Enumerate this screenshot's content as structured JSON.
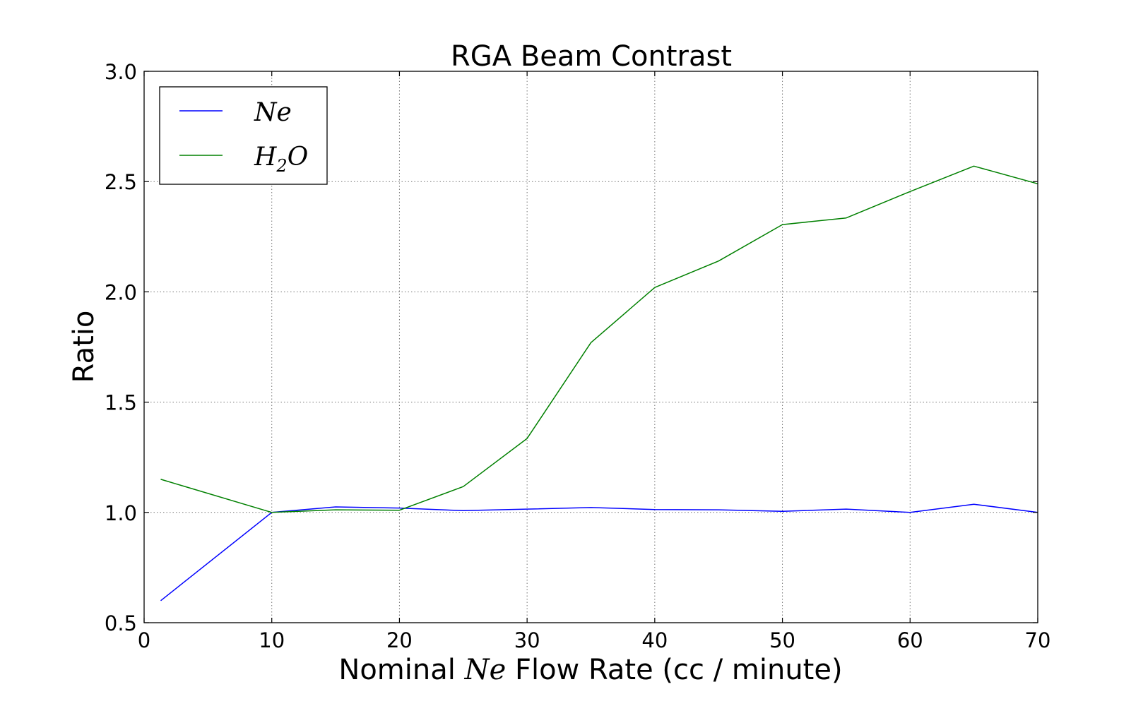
{
  "chart_data": {
    "type": "line",
    "title": "RGA Beam Contrast",
    "xlabel": {
      "pre": "Nominal ",
      "math": "Ne",
      "post": " Flow Rate (cc / minute)"
    },
    "ylabel": "Ratio",
    "xlim": [
      0,
      70
    ],
    "ylim": [
      0.5,
      3.0
    ],
    "xticks": [
      0,
      10,
      20,
      30,
      40,
      50,
      60,
      70
    ],
    "xtick_labels": [
      "0",
      "10",
      "20",
      "30",
      "40",
      "50",
      "60",
      "70"
    ],
    "yticks": [
      0.5,
      1.0,
      1.5,
      2.0,
      2.5,
      3.0
    ],
    "ytick_labels": [
      "0.5",
      "1.0",
      "1.5",
      "2.0",
      "2.5",
      "3.0"
    ],
    "grid": true,
    "legend_position": "top-left",
    "series": [
      {
        "name": "Ne",
        "label_base": "Ne",
        "label_sub": "",
        "label_tail": "",
        "color": "#0000ff",
        "x": [
          1.3,
          10,
          15,
          20,
          25,
          30,
          35,
          40,
          45,
          50,
          55,
          60,
          65,
          70
        ],
        "y": [
          0.6,
          1.0,
          1.025,
          1.02,
          1.008,
          1.015,
          1.022,
          1.013,
          1.012,
          1.005,
          1.015,
          1.0,
          1.037,
          1.0
        ]
      },
      {
        "name": "H2O",
        "label_base": "H",
        "label_sub": "2",
        "label_tail": "O",
        "color": "#008000",
        "x": [
          1.3,
          10,
          15,
          20,
          25,
          30,
          35,
          40,
          45,
          50,
          55,
          60,
          65,
          70
        ],
        "y": [
          1.15,
          1.0,
          1.012,
          1.01,
          1.117,
          1.335,
          1.77,
          2.02,
          2.14,
          2.305,
          2.335,
          2.455,
          2.57,
          2.49
        ]
      }
    ]
  }
}
